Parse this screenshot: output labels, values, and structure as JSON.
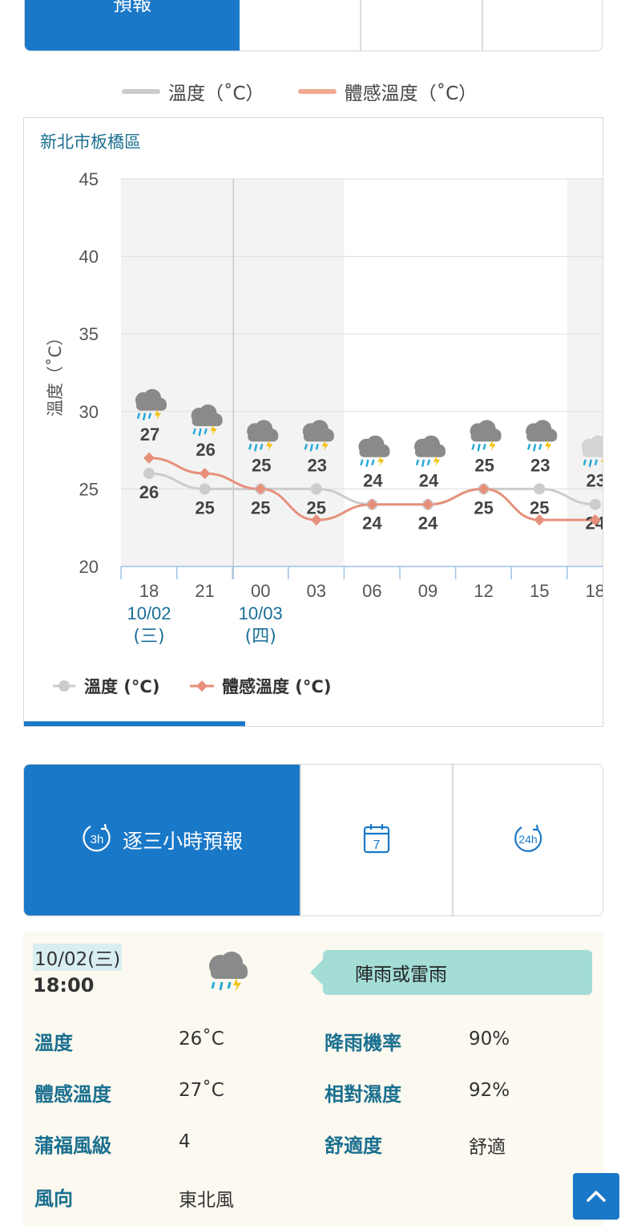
{
  "top_tabs": {
    "active_label": "預報"
  },
  "legend_top": [
    {
      "label": "溫度（˚C）",
      "color": "#cccccc"
    },
    {
      "label": "體感溫度（˚C）",
      "color": "#f0a88f"
    }
  ],
  "chart": {
    "location": "新北市板橋區",
    "legend": [
      {
        "label": "溫度 (°C)"
      },
      {
        "label": "體感溫度 (°C)"
      }
    ]
  },
  "chart_data": {
    "type": "line",
    "ylabel": "溫度（˚C）",
    "ylim": [
      20,
      45
    ],
    "yticks": [
      20,
      25,
      30,
      35,
      40,
      45
    ],
    "x": [
      "18",
      "21",
      "00",
      "03",
      "06",
      "09",
      "12",
      "15",
      "18"
    ],
    "date_labels": [
      {
        "at": "18",
        "date": "10/02",
        "weekday": "(三)"
      },
      {
        "at": "00",
        "date": "10/03",
        "weekday": "(四)"
      }
    ],
    "series": [
      {
        "name": "溫度 (°C)",
        "color": "#cccccc",
        "values": [
          26,
          25,
          25,
          25,
          24,
          24,
          25,
          25,
          24
        ]
      },
      {
        "name": "體感溫度 (°C)",
        "color": "#e6907a",
        "values": [
          27,
          26,
          25,
          23,
          24,
          24,
          25,
          23,
          23
        ]
      }
    ],
    "weather_icons": [
      "rain-thunder-icon",
      "rain-thunder-icon",
      "rain-thunder-icon",
      "rain-thunder-icon",
      "rain-thunder-icon",
      "rain-thunder-icon",
      "rain-thunder-icon",
      "rain-thunder-icon",
      "rain-thunder-light-icon"
    ]
  },
  "tabs2": [
    {
      "label": "逐三小時預報",
      "icon": "3h-clock-icon",
      "icon_text": "3h"
    },
    {
      "label": "",
      "icon": "calendar-7-icon",
      "icon_text": "7"
    },
    {
      "label": "",
      "icon": "24h-clock-icon",
      "icon_text": "24h"
    }
  ],
  "detail": {
    "date": "10/02(三)",
    "time": "18:00",
    "description": "陣雨或雷雨",
    "rows": [
      {
        "label": "溫度",
        "value": "26˚C",
        "label2": "降雨機率",
        "value2": "90%"
      },
      {
        "label": "體感溫度",
        "value": "27˚C",
        "label2": "相對濕度",
        "value2": "92%"
      },
      {
        "label": "蒲福風級",
        "value": "4",
        "label2": "舒適度",
        "value2": "舒適"
      },
      {
        "label": "風向",
        "value": "東北風",
        "label2": "",
        "value2": ""
      }
    ]
  }
}
